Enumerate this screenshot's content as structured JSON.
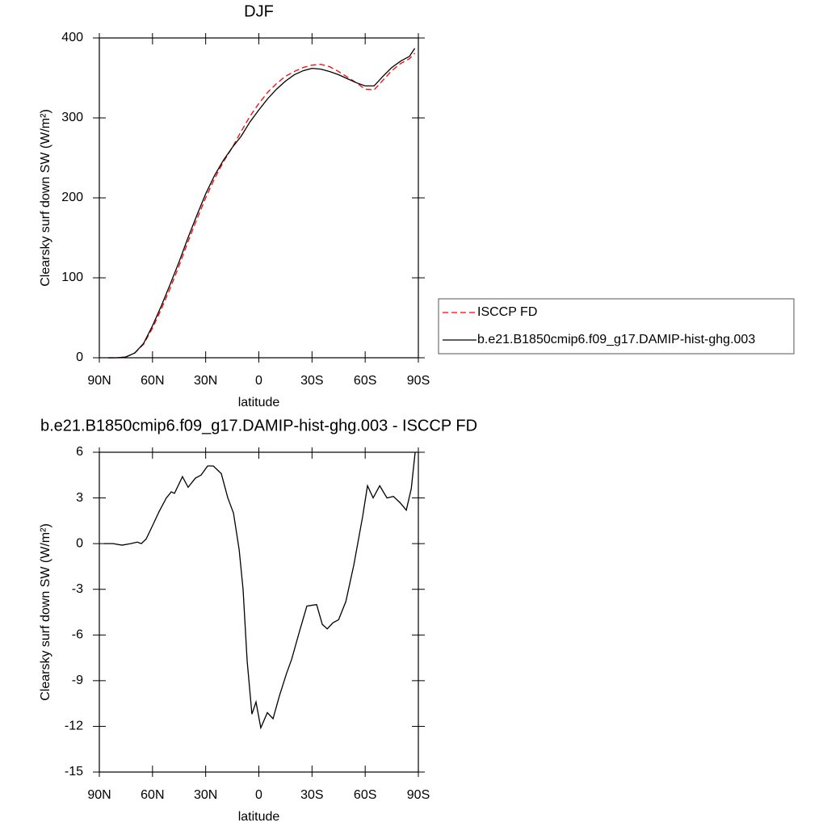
{
  "chart_data": [
    {
      "type": "line",
      "title": "DJF",
      "xlabel": "latitude",
      "ylabel": "Clearsky surf down SW (W/m²)",
      "x": [
        85,
        80,
        75,
        70,
        65,
        60,
        55,
        50,
        45,
        40,
        35,
        30,
        25,
        20,
        15,
        10,
        5,
        0,
        -5,
        -10,
        -15,
        -20,
        -25,
        -30,
        -35,
        -40,
        -45,
        -50,
        -55,
        -60,
        -65,
        -70,
        -75,
        -80,
        -85,
        -88
      ],
      "series": [
        {
          "name": "ISCCP FD",
          "color": "#ff0000",
          "linestyle": "dashed",
          "values": [
            0,
            0,
            1,
            6,
            17,
            37,
            61,
            87,
            115,
            145,
            173,
            200,
            224,
            245,
            263,
            283,
            302,
            318,
            332,
            343,
            352,
            358,
            363,
            366,
            367,
            364,
            358,
            351,
            344,
            336,
            335,
            347,
            359,
            368,
            374,
            381
          ]
        },
        {
          "name": "b.e21.B1850cmip6.f09_g17.DAMIP-hist-ghg.003",
          "color": "#000000",
          "linestyle": "solid",
          "values": [
            0,
            0,
            1,
            6,
            18,
            40,
            65,
            92,
            120,
            150,
            178,
            205,
            228,
            247,
            263,
            277,
            295,
            310,
            324,
            336,
            346,
            354,
            359,
            362,
            361,
            358,
            354,
            349,
            344,
            340,
            340,
            352,
            363,
            371,
            377,
            387
          ]
        }
      ],
      "xlim": [
        90,
        -90
      ],
      "xticks": [
        {
          "value": 90,
          "label": "90N"
        },
        {
          "value": 60,
          "label": "60N"
        },
        {
          "value": 30,
          "label": "30N"
        },
        0,
        {
          "value": -30,
          "label": "30S"
        },
        {
          "value": -60,
          "label": "60S"
        },
        {
          "value": -90,
          "label": "90S"
        }
      ],
      "ylim": [
        0,
        400
      ],
      "yticks": [
        0,
        100,
        200,
        300,
        400
      ],
      "legend": "right"
    },
    {
      "type": "line",
      "title": "b.e21.B1850cmip6.f09_g17.DAMIP-hist-ghg.003 - ISCCP FD",
      "xlabel": "latitude",
      "ylabel": "Clearsky surf down SW (W/m²)",
      "x": [
        87.3,
        82.3,
        77.2,
        72.2,
        68.6,
        66.3,
        63.6,
        59.9,
        56.3,
        52.2,
        49.4,
        47.6,
        43.1,
        39.9,
        35.8,
        32.6,
        28.9,
        25.7,
        21.2,
        17.5,
        14.3,
        11.1,
        8.9,
        6.6,
        3.9,
        1.6,
        -1.1,
        -4.8,
        -8.0,
        -11.6,
        -15.7,
        -18.5,
        -22.6,
        -27.1,
        -32.6,
        -35.8,
        -38.6,
        -41.8,
        -45.0,
        -49.1,
        -53.6,
        -58.6,
        -61.3,
        -64.5,
        -68.2,
        -72.3,
        -75.9,
        -79.6,
        -83.2,
        -86.0,
        -88.2
      ],
      "values": [
        0,
        0,
        -0.1,
        0,
        0.1,
        0,
        0.3,
        1.2,
        2.1,
        3.0,
        3.4,
        3.3,
        4.4,
        3.7,
        4.3,
        4.5,
        5.1,
        5.1,
        4.6,
        3.0,
        2.0,
        -0.4,
        -3.0,
        -7.7,
        -11.2,
        -10.4,
        -12.1,
        -11.1,
        -11.5,
        -10.0,
        -8.5,
        -7.6,
        -5.9,
        -4.1,
        -4.0,
        -5.3,
        -5.6,
        -5.2,
        -5.0,
        -3.8,
        -1.4,
        1.8,
        3.8,
        3.0,
        3.8,
        3.0,
        3.1,
        2.7,
        2.2,
        3.6,
        6.0
      ],
      "color": "#000000",
      "xlim": [
        90,
        -90
      ],
      "xticks": [
        {
          "value": 90,
          "label": "90N"
        },
        {
          "value": 60,
          "label": "60N"
        },
        {
          "value": 30,
          "label": "30N"
        },
        0,
        {
          "value": -30,
          "label": "30S"
        },
        {
          "value": -60,
          "label": "60S"
        },
        {
          "value": -90,
          "label": "90S"
        }
      ],
      "ylim": [
        -15,
        6
      ],
      "yticks": [
        -15,
        -12,
        -9,
        -6,
        -3,
        0,
        3,
        6
      ]
    }
  ]
}
